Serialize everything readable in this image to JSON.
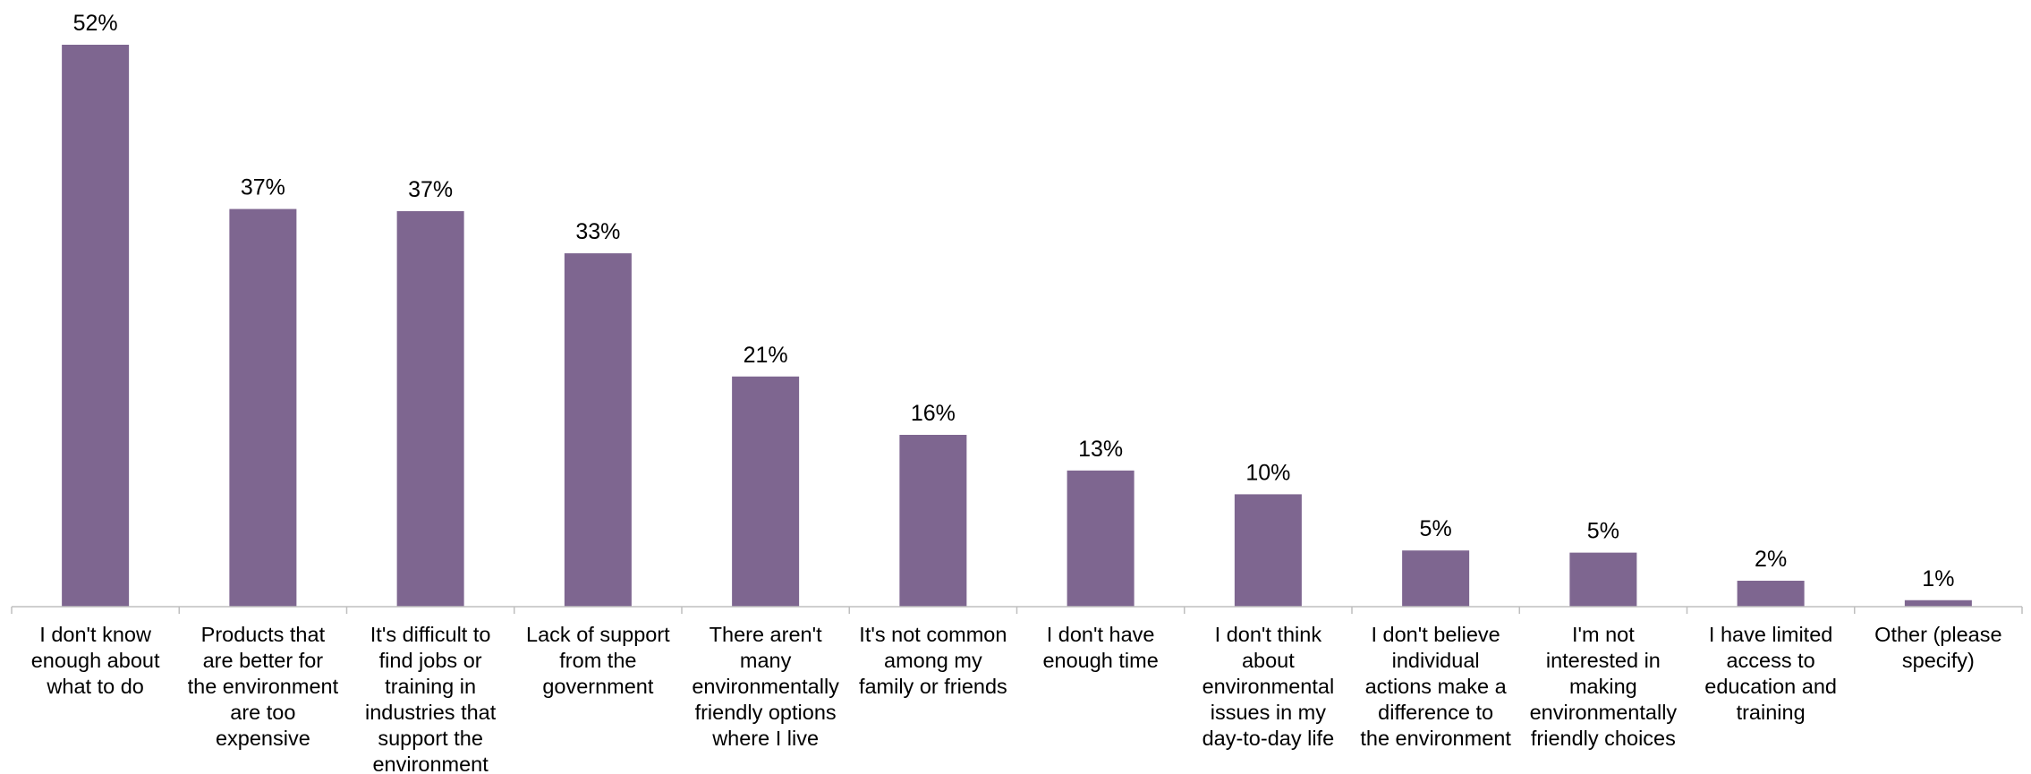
{
  "chart_data": {
    "type": "bar",
    "title": "",
    "xlabel": "",
    "ylabel": "",
    "ylim": [
      0,
      52
    ],
    "grid": false,
    "legend": "none",
    "bar_color": "#7e6690",
    "categories": [
      "I don't know enough about what to do",
      "Products that are better for the environment are too expensive",
      "It's difficult to find jobs or training in industries that support the environment",
      "Lack of support from the government",
      "There aren't many environmentally friendly options where I live",
      "It's not common among my family or friends",
      "I don't have enough time",
      "I don't think about environmental issues in my day-to-day life",
      "I don't believe individual actions make a difference to the environment",
      "I'm not interested in making environmentally friendly choices",
      "I have limited access to education and training",
      "Other (please specify)"
    ],
    "category_lines": [
      [
        "I don't know",
        "enough about",
        "what to do"
      ],
      [
        "Products that",
        "are better for",
        "the environment",
        "are too",
        "expensive"
      ],
      [
        "It's difficult to",
        "find jobs or",
        "training in",
        "industries that",
        "support the",
        "environment"
      ],
      [
        "Lack of support",
        "from the",
        "government"
      ],
      [
        "There aren't",
        "many",
        "environmentally",
        "friendly options",
        "where I live"
      ],
      [
        "It's not common",
        "among my",
        "family or friends"
      ],
      [
        "I don't have",
        "enough time"
      ],
      [
        "I don't think",
        "about",
        "environmental",
        "issues in my",
        "day-to-day life"
      ],
      [
        "I don't believe",
        "individual",
        "actions make a",
        "difference to",
        "the environment"
      ],
      [
        "I'm not",
        "interested in",
        "making",
        "environmentally",
        "friendly choices"
      ],
      [
        "I have limited",
        "access to",
        "education and",
        "training"
      ],
      [
        "Other (please",
        "specify)"
      ]
    ],
    "values": [
      52,
      36.8,
      36.6,
      32.7,
      21.3,
      15.9,
      12.6,
      10.4,
      5.2,
      5.0,
      2.4,
      0.6
    ],
    "data_labels": [
      "52%",
      "37%",
      "37%",
      "33%",
      "21%",
      "16%",
      "13%",
      "10%",
      "5%",
      "5%",
      "2%",
      "1%"
    ]
  }
}
